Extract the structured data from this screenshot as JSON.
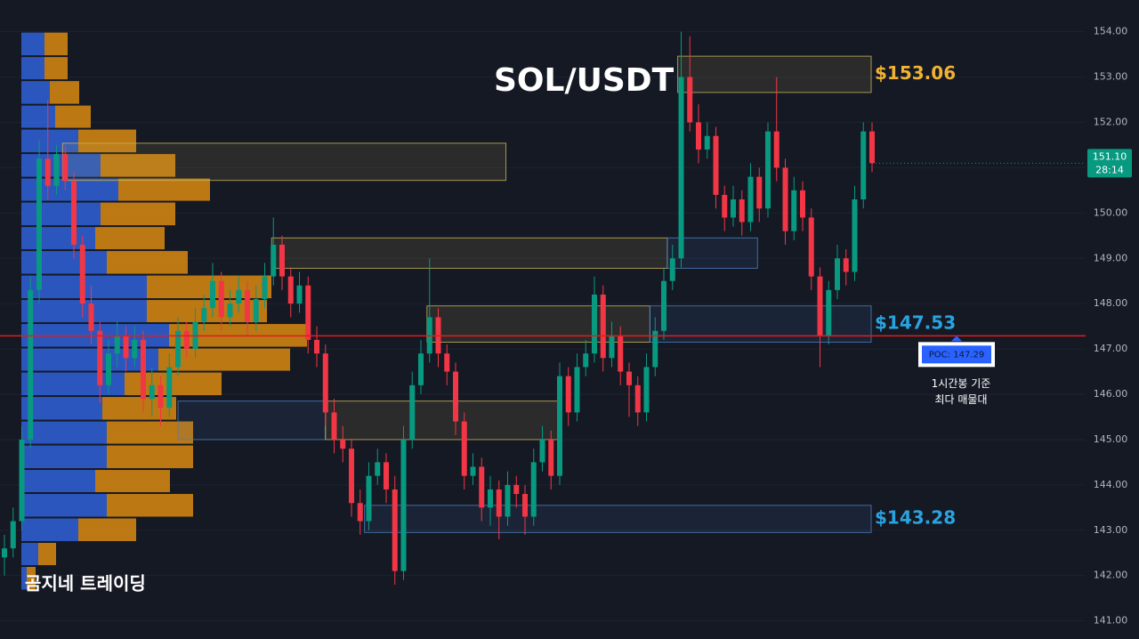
{
  "chart_data": {
    "type": "candlestick",
    "title": "SOL/USDT",
    "watermark": "곰지네 트레이딩",
    "ylim": [
      140.6,
      154.7
    ],
    "yticks": [
      {
        "value": 141,
        "label": "141.00"
      },
      {
        "value": 142,
        "label": "142.00"
      },
      {
        "value": 143,
        "label": "143.00"
      },
      {
        "value": 144,
        "label": "144.00"
      },
      {
        "value": 145,
        "label": "145.00"
      },
      {
        "value": 146,
        "label": "146.00"
      },
      {
        "value": 147,
        "label": "147.00"
      },
      {
        "value": 148,
        "label": "148.00"
      },
      {
        "value": 149,
        "label": "149.00"
      },
      {
        "value": 150,
        "label": "150.00"
      },
      {
        "value": 151,
        "label": "151.00"
      },
      {
        "value": 152,
        "label": "152.00"
      },
      {
        "value": 153,
        "label": "153.00"
      },
      {
        "value": 154,
        "label": "154.00"
      }
    ],
    "grid": true,
    "up_color": "#089981",
    "down_color": "#f23645",
    "last_price": {
      "value": 151.1,
      "label": "151.10"
    },
    "countdown": "28:14",
    "candles": [
      [
        142.4,
        142.9,
        142.0,
        142.6
      ],
      [
        142.6,
        143.5,
        142.4,
        143.2
      ],
      [
        143.2,
        145.3,
        143.0,
        145.0
      ],
      [
        145.0,
        148.6,
        144.8,
        148.3
      ],
      [
        148.3,
        151.6,
        148.0,
        151.2
      ],
      [
        151.2,
        152.5,
        150.3,
        150.6
      ],
      [
        150.6,
        151.5,
        150.4,
        151.3
      ],
      [
        151.3,
        151.5,
        150.5,
        150.7
      ],
      [
        150.7,
        150.9,
        149.0,
        149.3
      ],
      [
        149.3,
        149.5,
        147.7,
        148.0
      ],
      [
        148.0,
        148.4,
        147.1,
        147.4
      ],
      [
        147.4,
        147.6,
        145.8,
        146.2
      ],
      [
        146.2,
        147.2,
        146.0,
        146.9
      ],
      [
        146.9,
        147.6,
        146.6,
        147.3
      ],
      [
        147.3,
        147.5,
        146.5,
        146.8
      ],
      [
        146.8,
        147.5,
        146.6,
        147.2
      ],
      [
        147.2,
        147.4,
        145.6,
        145.9
      ],
      [
        145.9,
        146.6,
        145.5,
        146.2
      ],
      [
        146.2,
        146.4,
        145.3,
        145.7
      ],
      [
        145.7,
        146.9,
        145.5,
        146.6
      ],
      [
        146.6,
        147.7,
        146.4,
        147.4
      ],
      [
        147.4,
        147.6,
        146.8,
        147.0
      ],
      [
        147.0,
        147.9,
        146.8,
        147.6
      ],
      [
        147.6,
        148.2,
        147.4,
        147.9
      ],
      [
        147.9,
        148.9,
        147.7,
        148.5
      ],
      [
        148.5,
        148.7,
        147.4,
        147.7
      ],
      [
        147.7,
        148.3,
        147.5,
        148.0
      ],
      [
        148.0,
        148.6,
        147.8,
        148.3
      ],
      [
        148.3,
        148.5,
        147.3,
        147.6
      ],
      [
        147.6,
        148.4,
        147.4,
        148.1
      ],
      [
        148.1,
        148.9,
        147.9,
        148.6
      ],
      [
        148.6,
        149.9,
        148.4,
        149.3
      ],
      [
        149.3,
        149.5,
        148.3,
        148.6
      ],
      [
        148.6,
        148.8,
        147.7,
        148.0
      ],
      [
        148.0,
        148.7,
        147.8,
        148.4
      ],
      [
        148.4,
        148.6,
        146.9,
        147.2
      ],
      [
        147.2,
        147.5,
        146.6,
        146.9
      ],
      [
        146.9,
        147.1,
        145.3,
        145.6
      ],
      [
        145.6,
        145.9,
        144.7,
        145.0
      ],
      [
        145.0,
        145.3,
        144.5,
        144.8
      ],
      [
        144.8,
        145.0,
        143.3,
        143.6
      ],
      [
        143.6,
        143.9,
        142.9,
        143.2
      ],
      [
        143.2,
        144.5,
        143.0,
        144.2
      ],
      [
        144.2,
        144.8,
        144.0,
        144.5
      ],
      [
        144.5,
        144.7,
        143.6,
        143.9
      ],
      [
        143.9,
        144.2,
        141.8,
        142.1
      ],
      [
        142.1,
        145.3,
        141.9,
        145.0
      ],
      [
        145.0,
        146.5,
        144.8,
        146.2
      ],
      [
        146.2,
        147.2,
        146.0,
        146.9
      ],
      [
        146.9,
        149.0,
        146.7,
        147.7
      ],
      [
        147.7,
        147.9,
        146.6,
        146.9
      ],
      [
        146.9,
        147.1,
        146.2,
        146.5
      ],
      [
        146.5,
        146.7,
        145.1,
        145.4
      ],
      [
        145.4,
        145.6,
        143.9,
        144.2
      ],
      [
        144.2,
        144.7,
        144.0,
        144.4
      ],
      [
        144.4,
        144.6,
        143.2,
        143.5
      ],
      [
        143.5,
        144.2,
        143.1,
        143.9
      ],
      [
        143.9,
        144.1,
        142.8,
        143.3
      ],
      [
        143.3,
        144.3,
        143.1,
        144.0
      ],
      [
        144.0,
        144.2,
        143.5,
        143.8
      ],
      [
        143.8,
        144.0,
        142.9,
        143.3
      ],
      [
        143.3,
        144.8,
        143.1,
        144.5
      ],
      [
        144.5,
        145.3,
        144.3,
        145.0
      ],
      [
        145.0,
        145.2,
        143.9,
        144.2
      ],
      [
        144.2,
        146.7,
        144.0,
        146.4
      ],
      [
        146.4,
        146.6,
        145.3,
        145.6
      ],
      [
        145.6,
        146.9,
        145.4,
        146.6
      ],
      [
        146.6,
        147.2,
        146.4,
        146.9
      ],
      [
        146.9,
        148.6,
        146.7,
        148.2
      ],
      [
        148.2,
        148.4,
        146.5,
        146.8
      ],
      [
        146.8,
        147.6,
        146.6,
        147.3
      ],
      [
        147.3,
        147.5,
        146.2,
        146.5
      ],
      [
        146.5,
        146.7,
        145.5,
        146.2
      ],
      [
        146.2,
        146.4,
        145.3,
        145.6
      ],
      [
        145.6,
        146.9,
        145.4,
        146.6
      ],
      [
        146.6,
        147.7,
        146.4,
        147.4
      ],
      [
        147.4,
        148.8,
        147.2,
        148.5
      ],
      [
        148.5,
        149.3,
        148.3,
        149.0
      ],
      [
        149.0,
        154.0,
        148.8,
        153.0
      ],
      [
        153.0,
        153.9,
        151.8,
        152.0
      ],
      [
        152.0,
        152.4,
        151.1,
        151.4
      ],
      [
        151.4,
        152.0,
        151.2,
        151.7
      ],
      [
        151.7,
        151.9,
        150.1,
        150.4
      ],
      [
        150.4,
        150.6,
        149.6,
        149.9
      ],
      [
        149.9,
        150.6,
        149.7,
        150.3
      ],
      [
        150.3,
        150.5,
        149.5,
        149.8
      ],
      [
        149.8,
        151.1,
        149.6,
        150.8
      ],
      [
        150.8,
        151.0,
        149.8,
        150.1
      ],
      [
        150.1,
        152.0,
        149.9,
        151.8
      ],
      [
        151.8,
        153.0,
        150.7,
        151.0
      ],
      [
        151.0,
        151.2,
        149.3,
        149.6
      ],
      [
        149.6,
        150.8,
        149.4,
        150.5
      ],
      [
        150.5,
        150.7,
        149.6,
        149.9
      ],
      [
        149.9,
        150.1,
        148.3,
        148.6
      ],
      [
        148.6,
        148.8,
        146.6,
        147.3
      ],
      [
        147.3,
        148.5,
        147.1,
        148.3
      ],
      [
        148.3,
        149.3,
        148.1,
        149.0
      ],
      [
        149.0,
        149.2,
        148.4,
        148.7
      ],
      [
        148.7,
        150.6,
        148.5,
        150.3
      ],
      [
        150.3,
        152.0,
        150.1,
        151.8
      ],
      [
        151.8,
        152.0,
        150.9,
        151.1
      ]
    ],
    "volume_profile": {
      "bins": [
        154.0,
        153.46,
        152.93,
        152.39,
        151.86,
        151.32,
        150.78,
        150.25,
        149.71,
        149.18,
        148.64,
        148.1,
        147.57,
        147.03,
        146.5,
        145.96,
        145.42,
        144.89,
        144.35,
        143.82,
        143.28,
        142.74,
        142.21,
        141.67
      ],
      "buy": [
        26,
        26,
        32,
        38,
        64,
        89,
        109,
        89,
        83,
        96,
        141,
        141,
        166,
        154,
        116,
        91,
        96,
        96,
        83,
        96,
        64,
        19,
        6
      ],
      "sell": [
        26,
        26,
        33,
        40,
        65,
        84,
        103,
        84,
        78,
        91,
        140,
        135,
        155,
        148,
        109,
        83,
        97,
        97,
        84,
        97,
        65,
        20,
        10
      ],
      "buy_color": "#2f62d8",
      "sell_color": "#d98a10"
    },
    "zones": [
      {
        "top": 153.46,
        "bottom": 152.66,
        "x_start": 77.6,
        "x_end": 99.9,
        "color": "#c9b458",
        "label": "$153.06",
        "label_color": "#f0b232"
      },
      {
        "top": 151.54,
        "bottom": 150.72,
        "x_start": 6.7,
        "x_end": 57.8,
        "color": "#c9b458"
      },
      {
        "top": 149.45,
        "bottom": 148.78,
        "x_start": 30.8,
        "x_end": 76.4,
        "color": "#c9b458"
      },
      {
        "top": 149.45,
        "bottom": 148.78,
        "x_start": 76.4,
        "x_end": 86.8,
        "color": "#4a7fc1"
      },
      {
        "top": 147.95,
        "bottom": 147.15,
        "x_start": 48.7,
        "x_end": 74.4,
        "color": "#c9b458"
      },
      {
        "top": 147.95,
        "bottom": 147.15,
        "x_start": 74.4,
        "x_end": 99.9,
        "color": "#4a7fc1",
        "label": "$147.53",
        "label_color": "#29a3e0"
      },
      {
        "top": 145.85,
        "bottom": 145.0,
        "x_start": 20,
        "x_end": 37,
        "color": "#4a7fc1"
      },
      {
        "top": 145.85,
        "bottom": 145.0,
        "x_start": 37,
        "x_end": 64.1,
        "color": "#c9b458"
      },
      {
        "top": 143.55,
        "bottom": 142.95,
        "x_start": 41.5,
        "x_end": 99.9,
        "color": "#4a7fc1",
        "label": "$143.28",
        "label_color": "#29a3e0"
      }
    ],
    "poc": {
      "value": 147.29,
      "label": "POC: 147.29",
      "color": "#e01e1e",
      "note": [
        "1시간봉 기준",
        "최다 매물대"
      ]
    }
  }
}
